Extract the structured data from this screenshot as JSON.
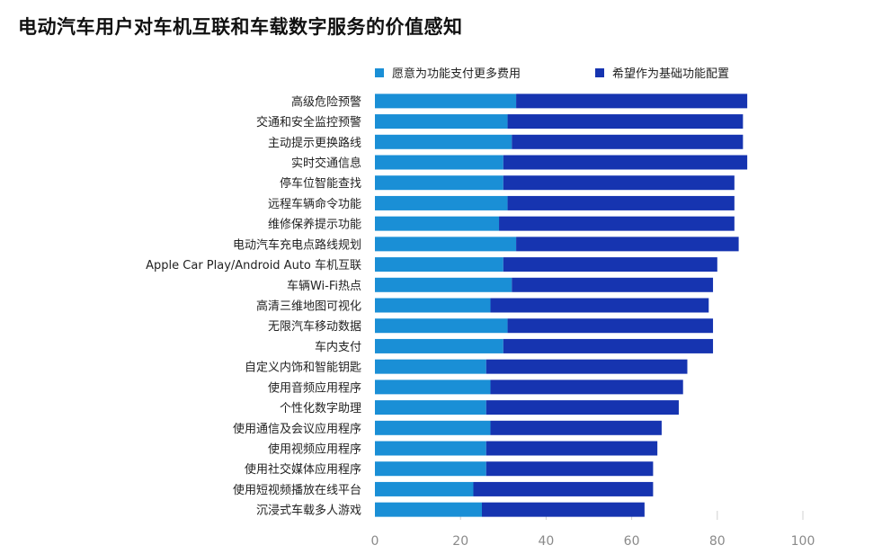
{
  "title": "电动汽车用户对车机互联和车载数字服务的价值感知",
  "chart_data": {
    "type": "bar",
    "orientation": "horizontal",
    "stacked": true,
    "title": "电动汽车用户对车机互联和车载数字服务的价值感知",
    "categories": [
      "高级危险预警",
      "交通和安全监控预警",
      "主动提示更换路线",
      "实时交通信息",
      "停车位智能查找",
      "远程车辆命令功能",
      "维修保养提示功能",
      "电动汽车充电点路线规划",
      "Apple Car Play/Android Auto 车机互联",
      "车辆Wi-Fi热点",
      "高清三维地图可视化",
      "无限汽车移动数据",
      "车内支付",
      "自定义内饰和智能钥匙",
      "使用音频应用程序",
      "个性化数字助理",
      "使用通信及会议应用程序",
      "使用视频应用程序",
      "使用社交媒体应用程序",
      "使用短视频播放在线平台",
      "沉浸式车载多人游戏"
    ],
    "series": [
      {
        "name": "愿意为功能支付更多费用",
        "color": "#1a8fd6",
        "values": [
          33,
          31,
          32,
          30,
          30,
          31,
          29,
          33,
          30,
          32,
          27,
          31,
          30,
          26,
          27,
          26,
          27,
          26,
          26,
          23,
          25
        ]
      },
      {
        "name": "希望作为基础功能配置",
        "color": "#1634b0",
        "values": [
          54,
          55,
          54,
          57,
          54,
          53,
          55,
          52,
          50,
          47,
          51,
          48,
          49,
          47,
          45,
          45,
          40,
          40,
          39,
          42,
          38
        ]
      }
    ],
    "xlim": [
      0,
      100
    ],
    "xticks": [
      0,
      20,
      40,
      60,
      80,
      100
    ],
    "grid": true,
    "legend_position": "top"
  }
}
